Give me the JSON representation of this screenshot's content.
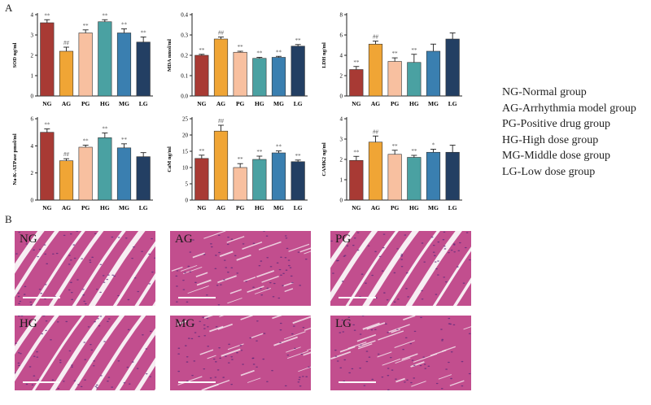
{
  "panel_labels": {
    "a": "A",
    "b": "B"
  },
  "colors": {
    "NG": "#a83a34",
    "AG": "#f0a535",
    "PG": "#f8c0a0",
    "HG": "#4aa1a2",
    "MG": "#3a7fb0",
    "LG": "#233f63",
    "tissue": "#c24e8e",
    "gap": "#f7eef3"
  },
  "legend": [
    "NG-Normal group",
    "AG-Arrhythmia model group",
    "PG-Positive drug group",
    "HG-High dose group",
    "MG-Middle dose group",
    "LG-Low dose group"
  ],
  "chart_data": [
    {
      "type": "bar",
      "ylabel": "SOD ng/ml",
      "ylim": [
        0,
        4
      ],
      "yticks": [
        0,
        1,
        2,
        3,
        4
      ],
      "categories": [
        "NG",
        "AG",
        "PG",
        "HG",
        "MG",
        "LG"
      ],
      "values": [
        3.6,
        2.2,
        3.1,
        3.65,
        3.1,
        2.65
      ],
      "errors": [
        0.15,
        0.2,
        0.15,
        0.1,
        0.2,
        0.25
      ],
      "annotations": [
        "**",
        "##",
        "**",
        "**",
        "**",
        "**"
      ]
    },
    {
      "type": "bar",
      "ylabel": "MDA nmol/ml",
      "ylim": [
        0,
        0.4
      ],
      "yticks": [
        0.0,
        0.1,
        0.2,
        0.3,
        0.4
      ],
      "categories": [
        "NG",
        "AG",
        "PG",
        "HG",
        "MG",
        "LG"
      ],
      "values": [
        0.2,
        0.28,
        0.215,
        0.185,
        0.19,
        0.245
      ],
      "errors": [
        0.005,
        0.01,
        0.005,
        0.005,
        0.005,
        0.008
      ],
      "annotations": [
        "**",
        "##",
        "**",
        "**",
        "**",
        "**"
      ]
    },
    {
      "type": "bar",
      "ylabel": "LDH ng/ml",
      "ylim": [
        0,
        8
      ],
      "yticks": [
        0,
        2,
        4,
        6,
        8
      ],
      "categories": [
        "NG",
        "AG",
        "PG",
        "HG",
        "MG",
        "LG"
      ],
      "values": [
        2.6,
        5.1,
        3.4,
        3.3,
        4.4,
        5.6
      ],
      "errors": [
        0.3,
        0.3,
        0.35,
        0.8,
        0.7,
        0.6
      ],
      "annotations": [
        "**",
        "##",
        "**",
        "**",
        "",
        ""
      ]
    },
    {
      "type": "bar",
      "ylabel": "Na-K-ATPase pmol/ml",
      "ylim": [
        0,
        6
      ],
      "yticks": [
        0,
        2,
        4,
        6
      ],
      "categories": [
        "NG",
        "AG",
        "PG",
        "HG",
        "MG",
        "LG"
      ],
      "values": [
        5.0,
        2.9,
        3.9,
        4.6,
        3.85,
        3.2
      ],
      "errors": [
        0.25,
        0.15,
        0.15,
        0.35,
        0.3,
        0.3
      ],
      "annotations": [
        "**",
        "##",
        "**",
        "**",
        "**",
        ""
      ]
    },
    {
      "type": "bar",
      "ylabel": "CaM ng/ml",
      "ylim": [
        0,
        25
      ],
      "yticks": [
        0,
        5,
        10,
        15,
        20,
        25
      ],
      "categories": [
        "NG",
        "AG",
        "PG",
        "HG",
        "MG",
        "LG"
      ],
      "values": [
        12.8,
        21.2,
        10.0,
        12.5,
        14.5,
        11.8
      ],
      "errors": [
        1.0,
        1.8,
        1.2,
        1.0,
        0.6,
        0.5
      ],
      "annotations": [
        "**",
        "##",
        "**",
        "**",
        "**",
        "**"
      ]
    },
    {
      "type": "bar",
      "ylabel": "CAMK2 ng/ml",
      "ylim": [
        0,
        4
      ],
      "yticks": [
        0,
        1,
        2,
        3,
        4
      ],
      "categories": [
        "NG",
        "AG",
        "PG",
        "HG",
        "MG",
        "LG"
      ],
      "values": [
        1.95,
        2.85,
        2.25,
        2.1,
        2.35,
        2.35
      ],
      "errors": [
        0.2,
        0.3,
        0.2,
        0.1,
        0.15,
        0.35
      ],
      "annotations": [
        "**",
        "##",
        "**",
        "**",
        "*",
        ""
      ]
    }
  ],
  "micrographs": [
    {
      "label": "NG",
      "style": "gaps"
    },
    {
      "label": "AG",
      "style": "dense"
    },
    {
      "label": "PG",
      "style": "gaps"
    },
    {
      "label": "HG",
      "style": "gaps"
    },
    {
      "label": "MG",
      "style": "dense"
    },
    {
      "label": "LG",
      "style": "dense"
    }
  ]
}
